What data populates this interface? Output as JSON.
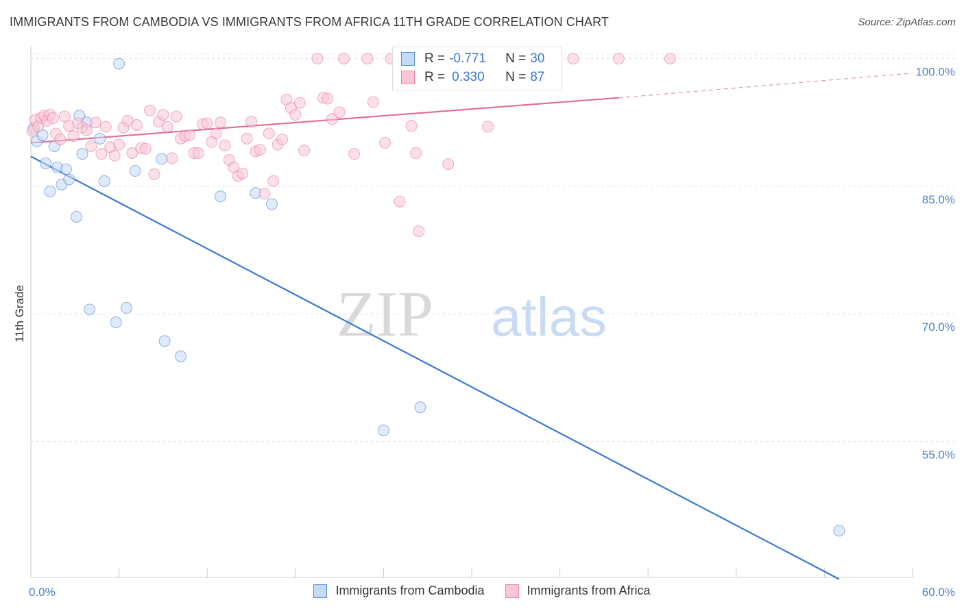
{
  "title": "IMMIGRANTS FROM CAMBODIA VS IMMIGRANTS FROM AFRICA 11TH GRADE CORRELATION CHART",
  "source": "Source: ZipAtlas.com",
  "watermark": {
    "zip": "ZIP",
    "atlas": "atlas"
  },
  "legend": {
    "rows": [
      {
        "r_label": "R =",
        "r_value": "-0.771",
        "n_label": "N =",
        "n_value": "30",
        "color": "#5b8fd6",
        "fill": "#b8d1f3"
      },
      {
        "r_label": "R =",
        "r_value": "0.330",
        "n_label": "N =",
        "n_value": "87",
        "color": "#e98aab",
        "fill": "#f9c6d6"
      }
    ]
  },
  "bottom_legend": [
    "Immigrants from Cambodia",
    "Immigrants from Africa"
  ],
  "chart_data": {
    "type": "scatter",
    "ylabel": "11th Grade",
    "xlabel": "",
    "xlim": [
      0,
      60
    ],
    "ylim": [
      39,
      101.5
    ],
    "x_tick_labels": [
      "0.0%",
      "60.0%"
    ],
    "y_ticks": [
      55,
      70,
      85,
      100
    ],
    "y_tick_labels": [
      "55.0%",
      "70.0%",
      "85.0%",
      "100.0%"
    ],
    "grid": true,
    "series": [
      {
        "name": "Immigrants from Cambodia",
        "color": "#3a78d4",
        "fill": "#c5daf5",
        "points": [
          [
            0.2,
            91.8
          ],
          [
            0.4,
            90.3
          ],
          [
            0.8,
            91.0
          ],
          [
            1.0,
            87.7
          ],
          [
            1.3,
            84.4
          ],
          [
            1.6,
            89.7
          ],
          [
            1.8,
            87.2
          ],
          [
            2.1,
            85.2
          ],
          [
            2.4,
            87.0
          ],
          [
            2.6,
            85.8
          ],
          [
            3.1,
            81.4
          ],
          [
            3.3,
            93.3
          ],
          [
            3.5,
            88.8
          ],
          [
            3.8,
            92.5
          ],
          [
            4.0,
            70.5
          ],
          [
            4.7,
            90.6
          ],
          [
            5.0,
            85.6
          ],
          [
            5.8,
            69.0
          ],
          [
            6.0,
            99.4
          ],
          [
            6.5,
            70.7
          ],
          [
            7.1,
            86.8
          ],
          [
            8.9,
            88.2
          ],
          [
            9.1,
            66.8
          ],
          [
            10.2,
            65.0
          ],
          [
            12.9,
            83.8
          ],
          [
            15.3,
            84.2
          ],
          [
            16.4,
            82.9
          ],
          [
            24.0,
            56.3
          ],
          [
            26.5,
            59.0
          ],
          [
            55.0,
            44.5
          ]
        ],
        "trend": {
          "x": [
            0,
            55
          ],
          "y": [
            88.5,
            38.8
          ]
        }
      },
      {
        "name": "Immigrants from Africa",
        "color": "#e46e97",
        "fill": "#f9c6d6",
        "points": [
          [
            0.1,
            91.5
          ],
          [
            0.3,
            92.8
          ],
          [
            0.5,
            92.0
          ],
          [
            0.7,
            93.0
          ],
          [
            0.9,
            93.3
          ],
          [
            1.1,
            92.7
          ],
          [
            1.3,
            93.4
          ],
          [
            1.5,
            93.0
          ],
          [
            1.7,
            91.2
          ],
          [
            2.0,
            90.5
          ],
          [
            2.3,
            93.2
          ],
          [
            2.6,
            92.1
          ],
          [
            2.9,
            90.9
          ],
          [
            3.2,
            92.4
          ],
          [
            3.5,
            91.9
          ],
          [
            3.8,
            91.6
          ],
          [
            4.1,
            89.7
          ],
          [
            4.4,
            92.5
          ],
          [
            4.8,
            88.8
          ],
          [
            5.1,
            92.0
          ],
          [
            5.4,
            89.6
          ],
          [
            5.7,
            88.6
          ],
          [
            6.0,
            89.9
          ],
          [
            6.3,
            91.9
          ],
          [
            6.6,
            92.7
          ],
          [
            6.9,
            88.9
          ],
          [
            7.2,
            92.2
          ],
          [
            7.5,
            89.5
          ],
          [
            7.8,
            89.4
          ],
          [
            8.1,
            93.9
          ],
          [
            8.4,
            86.4
          ],
          [
            8.7,
            92.6
          ],
          [
            9.0,
            93.4
          ],
          [
            9.3,
            92.0
          ],
          [
            9.6,
            88.3
          ],
          [
            9.9,
            93.2
          ],
          [
            10.2,
            90.6
          ],
          [
            10.5,
            90.9
          ],
          [
            10.8,
            91.0
          ],
          [
            11.1,
            88.9
          ],
          [
            11.4,
            88.9
          ],
          [
            11.7,
            92.3
          ],
          [
            12.0,
            92.4
          ],
          [
            12.3,
            90.2
          ],
          [
            12.6,
            91.2
          ],
          [
            12.9,
            92.5
          ],
          [
            13.2,
            89.8
          ],
          [
            13.5,
            88.1
          ],
          [
            13.8,
            87.2
          ],
          [
            14.1,
            86.2
          ],
          [
            14.4,
            86.5
          ],
          [
            14.7,
            90.6
          ],
          [
            15.0,
            92.6
          ],
          [
            15.3,
            89.1
          ],
          [
            15.6,
            89.3
          ],
          [
            15.9,
            84.1
          ],
          [
            16.2,
            91.2
          ],
          [
            16.5,
            85.6
          ],
          [
            16.8,
            89.9
          ],
          [
            17.1,
            90.5
          ],
          [
            17.4,
            95.2
          ],
          [
            17.7,
            94.2
          ],
          [
            18.0,
            93.4
          ],
          [
            18.3,
            94.8
          ],
          [
            18.6,
            89.2
          ],
          [
            19.5,
            100.0
          ],
          [
            19.9,
            95.4
          ],
          [
            20.2,
            95.3
          ],
          [
            20.5,
            92.9
          ],
          [
            21.0,
            93.7
          ],
          [
            21.3,
            100.0
          ],
          [
            22.0,
            88.8
          ],
          [
            22.9,
            100.0
          ],
          [
            23.3,
            94.9
          ],
          [
            24.1,
            90.1
          ],
          [
            24.5,
            100.0
          ],
          [
            25.1,
            83.2
          ],
          [
            25.9,
            92.1
          ],
          [
            26.2,
            88.9
          ],
          [
            26.4,
            79.7
          ],
          [
            28.4,
            87.6
          ],
          [
            29.2,
            100.0
          ],
          [
            31.1,
            92.0
          ],
          [
            33.5,
            100.0
          ],
          [
            36.9,
            100.0
          ],
          [
            40.0,
            100.0
          ],
          [
            43.5,
            100.0
          ]
        ],
        "trend": {
          "x": [
            0,
            40
          ],
          "y": [
            90.1,
            95.4
          ]
        },
        "trend_extension": {
          "x": [
            40,
            60
          ],
          "y": [
            95.4,
            98.3
          ]
        }
      }
    ]
  }
}
